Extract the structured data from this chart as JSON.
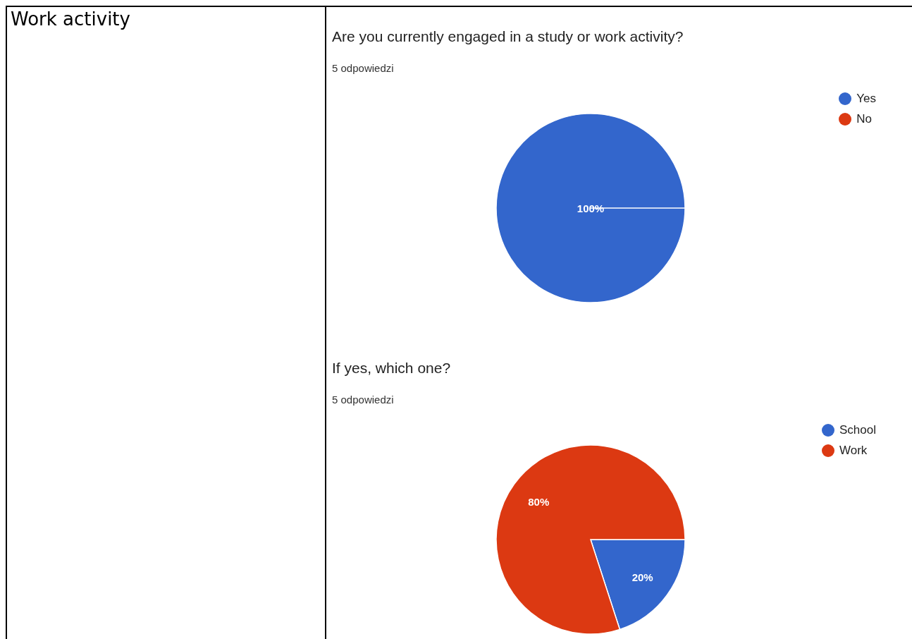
{
  "chart_data": [
    {
      "type": "other",
      "title": "Work activity"
    },
    {
      "type": "pie",
      "title": "Are you currently engaged in a study or work activity?",
      "subtitle": "5 odpowiedzi",
      "categories": [
        "Yes",
        "No"
      ],
      "values": [
        100,
        0
      ],
      "colors": [
        "#3366cc",
        "#dc3912"
      ],
      "value_labels": [
        "100%",
        null
      ],
      "legend": "top right"
    },
    {
      "type": "pie",
      "title": "If yes, which one?",
      "subtitle": "5 odpowiedzi",
      "categories": [
        "School",
        "Work"
      ],
      "values": [
        20,
        80
      ],
      "colors": [
        "#3366cc",
        "#dc3912"
      ],
      "value_labels": [
        "20%",
        "80%"
      ],
      "legend": "top right"
    }
  ]
}
